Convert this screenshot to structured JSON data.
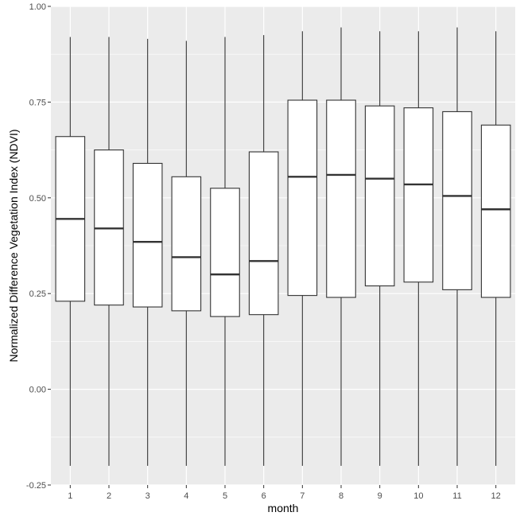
{
  "chart_data": {
    "type": "box",
    "title": "",
    "xlabel": "month",
    "ylabel": "Normalized Difference Vegetation Index (NDVI)",
    "categories": [
      "1",
      "2",
      "3",
      "4",
      "5",
      "6",
      "7",
      "8",
      "9",
      "10",
      "11",
      "12"
    ],
    "ylim": [
      -0.25,
      1.0
    ],
    "yticks": [
      -0.25,
      0.0,
      0.25,
      0.5,
      0.75,
      1.0
    ],
    "ytick_labels": [
      "-0.25",
      "0.00",
      "0.25",
      "0.50",
      "0.75",
      "1.00"
    ],
    "grid": true,
    "boxes": [
      {
        "category": "1",
        "min": -0.2,
        "q1": 0.23,
        "median": 0.445,
        "q3": 0.66,
        "max": 0.92
      },
      {
        "category": "2",
        "min": -0.2,
        "q1": 0.22,
        "median": 0.42,
        "q3": 0.625,
        "max": 0.92
      },
      {
        "category": "3",
        "min": -0.2,
        "q1": 0.215,
        "median": 0.385,
        "q3": 0.59,
        "max": 0.915
      },
      {
        "category": "4",
        "min": -0.2,
        "q1": 0.205,
        "median": 0.345,
        "q3": 0.555,
        "max": 0.91
      },
      {
        "category": "5",
        "min": -0.2,
        "q1": 0.19,
        "median": 0.3,
        "q3": 0.525,
        "max": 0.92
      },
      {
        "category": "6",
        "min": -0.2,
        "q1": 0.195,
        "median": 0.335,
        "q3": 0.62,
        "max": 0.925
      },
      {
        "category": "7",
        "min": -0.2,
        "q1": 0.245,
        "median": 0.555,
        "q3": 0.755,
        "max": 0.935
      },
      {
        "category": "8",
        "min": -0.2,
        "q1": 0.24,
        "median": 0.56,
        "q3": 0.755,
        "max": 0.945
      },
      {
        "category": "9",
        "min": -0.2,
        "q1": 0.27,
        "median": 0.55,
        "q3": 0.74,
        "max": 0.935
      },
      {
        "category": "10",
        "min": -0.2,
        "q1": 0.28,
        "median": 0.535,
        "q3": 0.735,
        "max": 0.935
      },
      {
        "category": "11",
        "min": -0.2,
        "q1": 0.26,
        "median": 0.505,
        "q3": 0.725,
        "max": 0.945
      },
      {
        "category": "12",
        "min": -0.2,
        "q1": 0.24,
        "median": 0.47,
        "q3": 0.69,
        "max": 0.935
      }
    ],
    "colors": {
      "panel_background": "#ebebeb",
      "grid_major": "#ffffff",
      "box_fill": "#ffffff",
      "box_line": "#333333"
    }
  }
}
